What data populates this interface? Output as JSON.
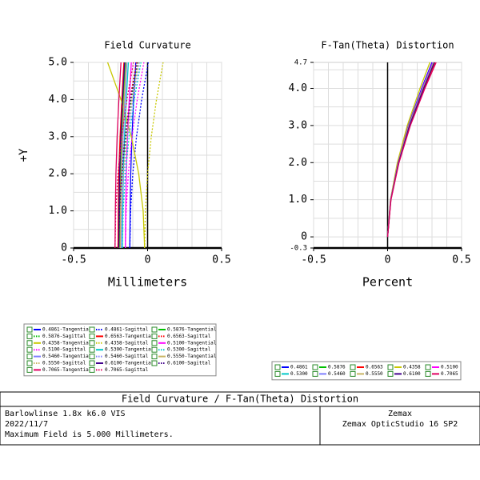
{
  "chart_data": [
    {
      "type": "line",
      "title": "Field Curvature",
      "xlabel": "Millimeters",
      "ylabel": "+Y",
      "y": [
        0,
        1,
        2,
        3,
        4,
        5
      ],
      "xlim": [
        -0.5,
        0.5
      ],
      "xticks": [
        -0.5,
        0,
        0.5
      ],
      "ylim": [
        0,
        5
      ],
      "yticks": [
        {
          "value": 0,
          "label": "0"
        },
        {
          "value": 1,
          "label": "1.0"
        },
        {
          "value": 2,
          "label": "2.0"
        },
        {
          "value": 3,
          "label": "3.0"
        },
        {
          "value": 4,
          "label": "4.0"
        },
        {
          "value": 5,
          "label": "5.0"
        }
      ],
      "xgrid": [
        -0.5,
        -0.4,
        -0.3,
        -0.2,
        -0.1,
        0,
        0.1,
        0.2,
        0.3,
        0.4,
        0.5
      ],
      "ygrid": [
        0,
        0.5,
        1,
        1.5,
        2,
        2.5,
        3,
        3.5,
        4,
        4.5,
        5
      ],
      "series": [
        {
          "name": "0.4861-Tangential",
          "color": "#0000ff",
          "line_style": "solid",
          "values": [
            -0.12,
            -0.118,
            -0.114,
            -0.106,
            -0.094,
            -0.08
          ]
        },
        {
          "name": "0.4861-Sagittal",
          "color": "#0000ff",
          "line_style": "dotted",
          "values": [
            -0.12,
            -0.115,
            -0.1,
            -0.075,
            -0.04,
            0.005
          ]
        },
        {
          "name": "0.5876-Tangential",
          "color": "#00c000",
          "line_style": "solid",
          "values": [
            -0.19,
            -0.188,
            -0.184,
            -0.176,
            -0.164,
            -0.15
          ]
        },
        {
          "name": "0.5876-Sagittal",
          "color": "#00c000",
          "line_style": "dotted",
          "values": [
            -0.19,
            -0.185,
            -0.17,
            -0.145,
            -0.11,
            -0.065
          ]
        },
        {
          "name": "0.6563-Tangential",
          "color": "#ff0000",
          "line_style": "solid",
          "values": [
            -0.2,
            -0.198,
            -0.194,
            -0.186,
            -0.174,
            -0.16
          ]
        },
        {
          "name": "0.6563-Sagittal",
          "color": "#ff0000",
          "line_style": "dotted",
          "values": [
            -0.2,
            -0.195,
            -0.18,
            -0.155,
            -0.12,
            -0.075
          ]
        },
        {
          "name": "0.4358-Tangential",
          "color": "#c8c800",
          "line_style": "solid",
          "values": [
            -0.02,
            -0.03,
            -0.06,
            -0.11,
            -0.18,
            -0.27
          ]
        },
        {
          "name": "0.4358-Sagittal",
          "color": "#c8c800",
          "line_style": "dotted",
          "values": [
            -0.02,
            -0.015,
            0,
            0.025,
            0.06,
            0.105
          ]
        },
        {
          "name": "0.5100-Tangential",
          "color": "#ff00ff",
          "line_style": "solid",
          "values": [
            -0.15,
            -0.148,
            -0.144,
            -0.136,
            -0.124,
            -0.11
          ]
        },
        {
          "name": "0.5100-Sagittal",
          "color": "#ff00ff",
          "line_style": "dotted",
          "values": [
            -0.15,
            -0.145,
            -0.13,
            -0.105,
            -0.07,
            -0.025
          ]
        },
        {
          "name": "0.5300-Tangential",
          "color": "#00c8c8",
          "line_style": "solid",
          "values": [
            -0.17,
            -0.168,
            -0.164,
            -0.156,
            -0.144,
            -0.13
          ]
        },
        {
          "name": "0.5300-Sagittal",
          "color": "#00c8c8",
          "line_style": "dotted",
          "values": [
            -0.17,
            -0.165,
            -0.15,
            -0.125,
            -0.09,
            -0.045
          ]
        },
        {
          "name": "0.5460-Tangential",
          "color": "#7f7fff",
          "line_style": "solid",
          "values": [
            -0.18,
            -0.178,
            -0.174,
            -0.166,
            -0.154,
            -0.14
          ]
        },
        {
          "name": "0.5460-Sagittal",
          "color": "#7f7fff",
          "line_style": "dotted",
          "values": [
            -0.18,
            -0.175,
            -0.16,
            -0.135,
            -0.1,
            -0.055
          ]
        },
        {
          "name": "0.5550-Tangential",
          "color": "#c8b464",
          "line_style": "solid",
          "values": [
            -0.185,
            -0.183,
            -0.179,
            -0.171,
            -0.159,
            -0.145
          ]
        },
        {
          "name": "0.5550-Sagittal",
          "color": "#c8b464",
          "line_style": "dotted",
          "values": [
            -0.185,
            -0.18,
            -0.165,
            -0.14,
            -0.105,
            -0.06
          ]
        },
        {
          "name": "0.6100-Tangential",
          "color": "#40008c",
          "line_style": "solid",
          "values": [
            -0.195,
            -0.193,
            -0.189,
            -0.181,
            -0.169,
            -0.155
          ]
        },
        {
          "name": "0.6100-Sagittal",
          "color": "#40008c",
          "line_style": "dotted",
          "values": [
            -0.195,
            -0.19,
            -0.175,
            -0.15,
            -0.115,
            -0.07
          ]
        },
        {
          "name": "0.7065-Tangential",
          "color": "#e00060",
          "line_style": "solid",
          "values": [
            -0.22,
            -0.218,
            -0.214,
            -0.206,
            -0.194,
            -0.18
          ]
        },
        {
          "name": "0.7065-Sagittal",
          "color": "#e00060",
          "line_style": "dotted",
          "values": [
            -0.22,
            -0.215,
            -0.2,
            -0.175,
            -0.14,
            -0.095
          ]
        }
      ]
    },
    {
      "type": "line",
      "title": "F-Tan(Theta) Distortion",
      "xlabel": "Percent",
      "y": [
        0,
        1,
        2,
        3,
        4,
        4.7
      ],
      "xlim": [
        -0.5,
        0.5
      ],
      "xticks": [
        -0.5,
        0,
        0.5
      ],
      "ylim": [
        -0.3,
        4.7
      ],
      "yticks": [
        -0.3,
        0,
        {
          "value": 1,
          "label": "1.0"
        },
        {
          "value": 2,
          "label": "2.0"
        },
        {
          "value": 3,
          "label": "3.0"
        },
        {
          "value": 4,
          "label": "4.0"
        },
        4.7
      ],
      "xgrid": [
        -0.5,
        -0.4,
        -0.3,
        -0.2,
        -0.1,
        0,
        0.1,
        0.2,
        0.3,
        0.4,
        0.5
      ],
      "ygrid": [
        0,
        0.5,
        1,
        1.5,
        2,
        2.5,
        3,
        3.5,
        4,
        4.5
      ],
      "series": [
        {
          "name": "0.4861",
          "color": "#0000ff",
          "line_style": "solid",
          "values": [
            0,
            0.02,
            0.07,
            0.14,
            0.23,
            0.3
          ]
        },
        {
          "name": "0.5876",
          "color": "#00c000",
          "line_style": "solid",
          "values": [
            0,
            0.021,
            0.073,
            0.146,
            0.24,
            0.313
          ]
        },
        {
          "name": "0.6563",
          "color": "#ff0000",
          "line_style": "solid",
          "values": [
            0,
            0.022,
            0.075,
            0.15,
            0.246,
            0.32
          ]
        },
        {
          "name": "0.4358",
          "color": "#c8c800",
          "line_style": "solid",
          "values": [
            0,
            0.019,
            0.066,
            0.133,
            0.219,
            0.286
          ]
        },
        {
          "name": "0.5100",
          "color": "#ff00ff",
          "line_style": "solid",
          "values": [
            0,
            0.02,
            0.071,
            0.142,
            0.234,
            0.305
          ]
        },
        {
          "name": "0.5300",
          "color": "#00c8c8",
          "line_style": "solid",
          "values": [
            0,
            0.021,
            0.072,
            0.144,
            0.237,
            0.309
          ]
        },
        {
          "name": "0.5460",
          "color": "#7f7fff",
          "line_style": "solid",
          "values": [
            0,
            0.021,
            0.072,
            0.145,
            0.238,
            0.311
          ]
        },
        {
          "name": "0.5550",
          "color": "#c8b464",
          "line_style": "solid",
          "values": [
            0,
            0.021,
            0.073,
            0.145,
            0.239,
            0.312
          ]
        },
        {
          "name": "0.6100",
          "color": "#40008c",
          "line_style": "solid",
          "values": [
            0,
            0.022,
            0.074,
            0.148,
            0.243,
            0.316
          ]
        },
        {
          "name": "0.7065",
          "color": "#e00060",
          "line_style": "solid",
          "values": [
            0,
            0.023,
            0.077,
            0.154,
            0.252,
            0.328
          ]
        }
      ]
    }
  ],
  "footer": {
    "title": "Field Curvature / F-Tan(Theta) Distortion",
    "left": [
      "Barlowlinse 1.8x k6.0 VIS",
      "2022/11/7",
      "Maximum Field is 5.000 Millimeters."
    ],
    "right": [
      "Zemax",
      "Zemax OpticStudio 16 SP2"
    ]
  }
}
